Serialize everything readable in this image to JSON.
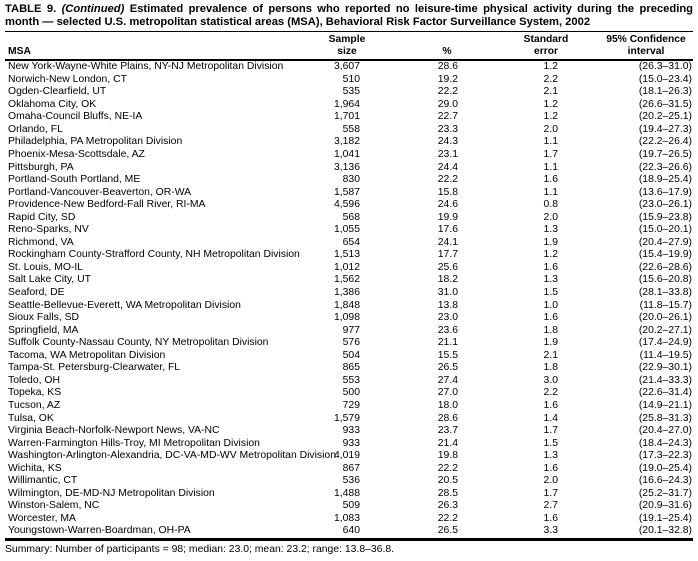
{
  "title": {
    "prefix": "TABLE 9. ",
    "continued": "(Continued)",
    "rest": " Estimated prevalence of persons who reported no leisure-time physical activity during the preceding month — selected U.S. metropolitan statistical areas (MSA), Behavioral Risk Factor Surveillance System, 2002"
  },
  "table": {
    "columns": {
      "msa": "MSA",
      "sample_size": [
        "Sample",
        "size"
      ],
      "percent": "%",
      "standard_error": [
        "Standard",
        "error"
      ],
      "confidence_interval": [
        "95% Confidence",
        "interval"
      ]
    },
    "rows": [
      {
        "msa": "New York-Wayne-White Plains, NY-NJ Metropolitan Division",
        "sample_size": "3,607",
        "percent": "28.6",
        "standard_error": "1.2",
        "confidence_interval": "(26.3–31.0)"
      },
      {
        "msa": "Norwich-New London, CT",
        "sample_size": "510",
        "percent": "19.2",
        "standard_error": "2.2",
        "confidence_interval": "(15.0–23.4)"
      },
      {
        "msa": "Ogden-Clearfield, UT",
        "sample_size": "535",
        "percent": "22.2",
        "standard_error": "2.1",
        "confidence_interval": "(18.1–26.3)"
      },
      {
        "msa": "Oklahoma City, OK",
        "sample_size": "1,964",
        "percent": "29.0",
        "standard_error": "1.2",
        "confidence_interval": "(26.6–31.5)"
      },
      {
        "msa": "Omaha-Council Bluffs, NE-IA",
        "sample_size": "1,701",
        "percent": "22.7",
        "standard_error": "1.2",
        "confidence_interval": "(20.2–25.1)"
      },
      {
        "msa": "Orlando, FL",
        "sample_size": "558",
        "percent": "23.3",
        "standard_error": "2.0",
        "confidence_interval": "(19.4–27.3)"
      },
      {
        "msa": "Philadelphia, PA Metropolitan Division",
        "sample_size": "3,182",
        "percent": "24.3",
        "standard_error": "1.1",
        "confidence_interval": "(22.2–26.4)"
      },
      {
        "msa": "Phoenix-Mesa-Scottsdale, AZ",
        "sample_size": "1,041",
        "percent": "23.1",
        "standard_error": "1.7",
        "confidence_interval": "(19.7–26.5)"
      },
      {
        "msa": "Pittsburgh, PA",
        "sample_size": "3,136",
        "percent": "24.4",
        "standard_error": "1.1",
        "confidence_interval": "(22.3–26.6)"
      },
      {
        "msa": "Portland-South Portland, ME",
        "sample_size": "830",
        "percent": "22.2",
        "standard_error": "1.6",
        "confidence_interval": "(18.9–25.4)"
      },
      {
        "msa": "Portland-Vancouver-Beaverton, OR-WA",
        "sample_size": "1,587",
        "percent": "15.8",
        "standard_error": "1.1",
        "confidence_interval": "(13.6–17.9)"
      },
      {
        "msa": "Providence-New Bedford-Fall River, RI-MA",
        "sample_size": "4,596",
        "percent": "24.6",
        "standard_error": "0.8",
        "confidence_interval": "(23.0–26.1)"
      },
      {
        "msa": "Rapid City, SD",
        "sample_size": "568",
        "percent": "19.9",
        "standard_error": "2.0",
        "confidence_interval": "(15.9–23.8)"
      },
      {
        "msa": "Reno-Sparks, NV",
        "sample_size": "1,055",
        "percent": "17.6",
        "standard_error": "1.3",
        "confidence_interval": "(15.0–20.1)"
      },
      {
        "msa": "Richmond, VA",
        "sample_size": "654",
        "percent": "24.1",
        "standard_error": "1.9",
        "confidence_interval": "(20.4–27.9)"
      },
      {
        "msa": "Rockingham County-Strafford County, NH Metropolitan Division",
        "sample_size": "1,513",
        "percent": "17.7",
        "standard_error": "1.2",
        "confidence_interval": "(15.4–19.9)"
      },
      {
        "msa": "St. Louis, MO-IL",
        "sample_size": "1,012",
        "percent": "25.6",
        "standard_error": "1.6",
        "confidence_interval": "(22.6–28.6)"
      },
      {
        "msa": "Salt Lake City, UT",
        "sample_size": "1,562",
        "percent": "18.2",
        "standard_error": "1.3",
        "confidence_interval": "(15.6–20.8)"
      },
      {
        "msa": "Seaford, DE",
        "sample_size": "1,386",
        "percent": "31.0",
        "standard_error": "1.5",
        "confidence_interval": "(28.1–33.8)"
      },
      {
        "msa": "Seattle-Bellevue-Everett, WA Metropolitan Division",
        "sample_size": "1,848",
        "percent": "13.8",
        "standard_error": "1.0",
        "confidence_interval": "(11.8–15.7)"
      },
      {
        "msa": "Sioux Falls, SD",
        "sample_size": "1,098",
        "percent": "23.0",
        "standard_error": "1.6",
        "confidence_interval": "(20.0–26.1)"
      },
      {
        "msa": "Springfield, MA",
        "sample_size": "977",
        "percent": "23.6",
        "standard_error": "1.8",
        "confidence_interval": "(20.2–27.1)"
      },
      {
        "msa": "Suffolk County-Nassau County, NY Metropolitan Division",
        "sample_size": "576",
        "percent": "21.1",
        "standard_error": "1.9",
        "confidence_interval": "(17.4–24.9)"
      },
      {
        "msa": "Tacoma, WA Metropolitan Division",
        "sample_size": "504",
        "percent": "15.5",
        "standard_error": "2.1",
        "confidence_interval": "(11.4–19.5)"
      },
      {
        "msa": "Tampa-St. Petersburg-Clearwater, FL",
        "sample_size": "865",
        "percent": "26.5",
        "standard_error": "1.8",
        "confidence_interval": "(22.9–30.1)"
      },
      {
        "msa": "Toledo, OH",
        "sample_size": "553",
        "percent": "27.4",
        "standard_error": "3.0",
        "confidence_interval": "(21.4–33.3)"
      },
      {
        "msa": "Topeka, KS",
        "sample_size": "500",
        "percent": "27.0",
        "standard_error": "2.2",
        "confidence_interval": "(22.6–31.4)"
      },
      {
        "msa": "Tucson, AZ",
        "sample_size": "729",
        "percent": "18.0",
        "standard_error": "1.6",
        "confidence_interval": "(14.9–21.1)"
      },
      {
        "msa": "Tulsa, OK",
        "sample_size": "1,579",
        "percent": "28.6",
        "standard_error": "1.4",
        "confidence_interval": "(25.8–31.3)"
      },
      {
        "msa": "Virginia Beach-Norfolk-Newport News, VA-NC",
        "sample_size": "933",
        "percent": "23.7",
        "standard_error": "1.7",
        "confidence_interval": "(20.4–27.0)"
      },
      {
        "msa": "Warren-Farmington Hills-Troy, MI Metropolitan Division",
        "sample_size": "933",
        "percent": "21.4",
        "standard_error": "1.5",
        "confidence_interval": "(18.4–24.3)"
      },
      {
        "msa": "Washington-Arlington-Alexandria, DC-VA-MD-WV Metropolitan Division",
        "sample_size": "4,019",
        "percent": "19.8",
        "standard_error": "1.3",
        "confidence_interval": "(17.3–22.3)"
      },
      {
        "msa": "Wichita, KS",
        "sample_size": "867",
        "percent": "22.2",
        "standard_error": "1.6",
        "confidence_interval": "(19.0–25.4)"
      },
      {
        "msa": "Willimantic, CT",
        "sample_size": "536",
        "percent": "20.5",
        "standard_error": "2.0",
        "confidence_interval": "(16.6–24.3)"
      },
      {
        "msa": "Wilmington, DE-MD-NJ Metropolitan Division",
        "sample_size": "1,488",
        "percent": "28.5",
        "standard_error": "1.7",
        "confidence_interval": "(25.2–31.7)"
      },
      {
        "msa": "Winston-Salem, NC",
        "sample_size": "509",
        "percent": "26.3",
        "standard_error": "2.7",
        "confidence_interval": "(20.9–31.6)"
      },
      {
        "msa": "Worcester, MA",
        "sample_size": "1,083",
        "percent": "22.2",
        "standard_error": "1.6",
        "confidence_interval": "(19.1–25.4)"
      },
      {
        "msa": "Youngstown-Warren-Boardman, OH-PA",
        "sample_size": "640",
        "percent": "26.5",
        "standard_error": "3.3",
        "confidence_interval": "(20.1–32.8)"
      }
    ]
  },
  "summary": "Summary: Number of participants = 98; median: 23.0; mean: 23.2; range: 13.8–36.8."
}
